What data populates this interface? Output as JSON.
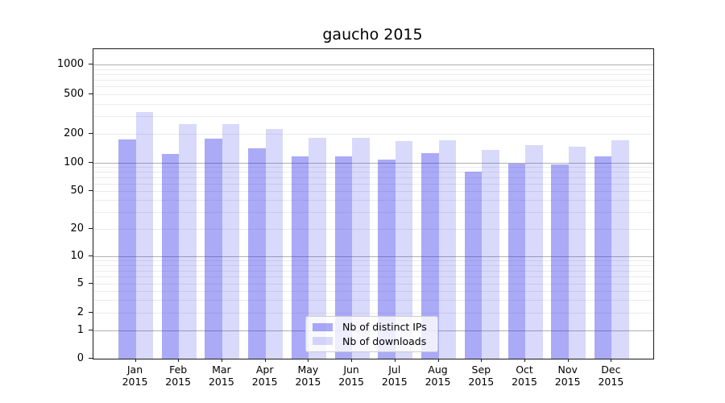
{
  "title": "gaucho 2015",
  "colors": {
    "distinct_ips_bar": "rgba(42,42,235,0.40)",
    "downloads_bar": "rgba(42,42,235,0.18)",
    "grid_major": "#b0b0b0",
    "grid_minor": "#ebebeb",
    "axis": "#1a1a1a"
  },
  "legend": {
    "items": [
      {
        "label": "Nb of distinct IPs",
        "color_key": "distinct_ips_bar"
      },
      {
        "label": "Nb of downloads",
        "color_key": "downloads_bar"
      }
    ]
  },
  "chart_data": {
    "type": "bar",
    "title": "gaucho 2015",
    "categories": [
      "Jan 2015",
      "Feb 2015",
      "Mar 2015",
      "Apr 2015",
      "May 2015",
      "Jun 2015",
      "Jul 2015",
      "Aug 2015",
      "Sep 2015",
      "Oct 2015",
      "Nov 2015",
      "Dec 2015"
    ],
    "series": [
      {
        "name": "Nb of distinct IPs",
        "color_key": "distinct_ips_bar",
        "values": [
          174,
          124,
          177,
          141,
          117,
          116,
          109,
          127,
          80,
          98,
          96,
          116
        ]
      },
      {
        "name": "Nb of downloads",
        "color_key": "downloads_bar",
        "values": [
          333,
          252,
          249,
          222,
          183,
          183,
          167,
          172,
          137,
          153,
          147,
          171
        ]
      }
    ],
    "yscale": "symlog",
    "y_ticks": [
      0,
      1,
      2,
      5,
      10,
      20,
      50,
      100,
      200,
      500,
      1000
    ],
    "ylim": [
      0,
      1400
    ],
    "grid": "both",
    "legend_position": "lower-center-inside"
  }
}
